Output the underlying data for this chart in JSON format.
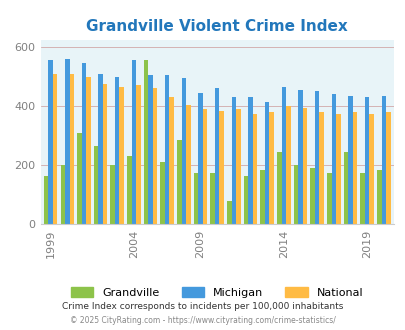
{
  "title": "Grandville Violent Crime Index",
  "title_color": "#2277bb",
  "years": [
    1999,
    2000,
    2001,
    2002,
    2003,
    2004,
    2005,
    2006,
    2008,
    2009,
    2010,
    2011,
    2012,
    2013,
    2014,
    2015,
    2016,
    2017,
    2018,
    2019,
    2020
  ],
  "grandville": [
    165,
    200,
    310,
    265,
    200,
    230,
    555,
    210,
    285,
    175,
    175,
    80,
    165,
    185,
    245,
    200,
    190,
    175,
    245,
    175,
    185
  ],
  "michigan": [
    555,
    560,
    545,
    510,
    500,
    555,
    505,
    505,
    495,
    445,
    460,
    430,
    430,
    415,
    465,
    455,
    450,
    440,
    435,
    430,
    435
  ],
  "national": [
    508,
    508,
    500,
    475,
    465,
    470,
    460,
    430,
    405,
    390,
    385,
    390,
    375,
    380,
    400,
    395,
    380,
    375,
    380,
    375,
    380
  ],
  "grandville_color": "#8dc34a",
  "michigan_color": "#4499dd",
  "national_color": "#ffbb44",
  "bg_color": "#e8f4f8",
  "ylabel_ticks": [
    0,
    200,
    400,
    600
  ],
  "ylim": [
    0,
    625
  ],
  "footer1": "Crime Index corresponds to incidents per 100,000 inhabitants",
  "footer2": "© 2025 CityRating.com - https://www.cityrating.com/crime-statistics/",
  "legend_labels": [
    "Grandville",
    "Michigan",
    "National"
  ],
  "labeled_years": [
    1999,
    2004,
    2009,
    2014,
    2019
  ]
}
